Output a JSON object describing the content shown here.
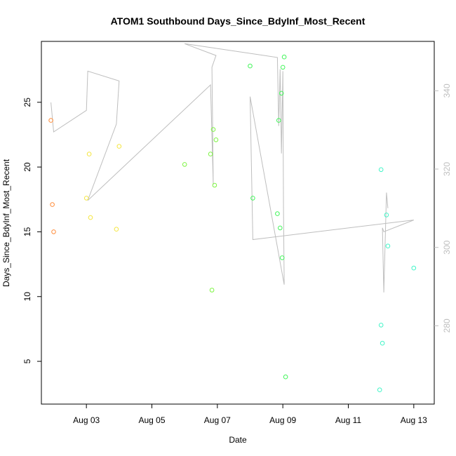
{
  "chart_data": {
    "type": "scatter",
    "title": "ATOM1 Southbound Days_Since_BdyInf_Most_Recent",
    "xlabel": "Date",
    "ylabel": "Days_Since_BdyInf_Most_Recent",
    "x_range": [
      "2022-08-01T15:00",
      "2022-08-13T15:00"
    ],
    "ylim": [
      1.7,
      29.7
    ],
    "y2lim": [
      260.0,
      352.6
    ],
    "x_ticks": [
      {
        "date": "2022-08-03",
        "label": "Aug 03"
      },
      {
        "date": "2022-08-05",
        "label": "Aug 05"
      },
      {
        "date": "2022-08-07",
        "label": "Aug 07"
      },
      {
        "date": "2022-08-09",
        "label": "Aug 09"
      },
      {
        "date": "2022-08-11",
        "label": "Aug 11"
      },
      {
        "date": "2022-08-13",
        "label": "Aug 13"
      }
    ],
    "y_ticks": [
      5,
      10,
      15,
      20,
      25
    ],
    "y2_ticks": [
      280,
      300,
      320,
      340
    ],
    "points": [
      {
        "x": "2022-08-01T22:00",
        "y": 23.6,
        "color": "#ff8c3a"
      },
      {
        "x": "2022-08-01T23:00",
        "y": 17.1,
        "color": "#ff8c3a"
      },
      {
        "x": "2022-08-02T00:00",
        "y": 15.0,
        "color": "#ff8c3a"
      },
      {
        "x": "2022-08-03T00:00",
        "y": 17.6,
        "color": "#f5e642"
      },
      {
        "x": "2022-08-03T02:00",
        "y": 21.0,
        "color": "#f5e642"
      },
      {
        "x": "2022-08-03T03:00",
        "y": 16.1,
        "color": "#f5e642"
      },
      {
        "x": "2022-08-03T22:00",
        "y": 15.2,
        "color": "#f5e642"
      },
      {
        "x": "2022-08-04T00:00",
        "y": 21.6,
        "color": "#f5e642"
      },
      {
        "x": "2022-08-06T00:00",
        "y": 20.2,
        "color": "#7df542"
      },
      {
        "x": "2022-08-06T19:00",
        "y": 21.0,
        "color": "#7df542"
      },
      {
        "x": "2022-08-06T20:00",
        "y": 10.5,
        "color": "#7df542"
      },
      {
        "x": "2022-08-06T21:00",
        "y": 22.9,
        "color": "#7df542"
      },
      {
        "x": "2022-08-06T22:00",
        "y": 18.6,
        "color": "#7df542"
      },
      {
        "x": "2022-08-06T23:00",
        "y": 22.1,
        "color": "#7df542"
      },
      {
        "x": "2022-08-08T00:00",
        "y": 27.8,
        "color": "#42f55a"
      },
      {
        "x": "2022-08-08T02:00",
        "y": 17.6,
        "color": "#42f55a"
      },
      {
        "x": "2022-08-08T20:00",
        "y": 16.4,
        "color": "#42f55a"
      },
      {
        "x": "2022-08-08T21:00",
        "y": 23.6,
        "color": "#42f55a"
      },
      {
        "x": "2022-08-08T22:00",
        "y": 15.3,
        "color": "#42f55a"
      },
      {
        "x": "2022-08-08T23:00",
        "y": 25.7,
        "color": "#42f55a"
      },
      {
        "x": "2022-08-09T00:00",
        "y": 27.7,
        "color": "#42f55a"
      },
      {
        "x": "2022-08-08T23:30",
        "y": 13.0,
        "color": "#42f55a"
      },
      {
        "x": "2022-08-09T01:00",
        "y": 28.5,
        "color": "#42f55a"
      },
      {
        "x": "2022-08-09T02:00",
        "y": 3.8,
        "color": "#42f55a"
      },
      {
        "x": "2022-08-12T00:00",
        "y": 19.8,
        "color": "#42f5c8"
      },
      {
        "x": "2022-08-12T04:00",
        "y": 16.3,
        "color": "#42f5c8"
      },
      {
        "x": "2022-08-12T05:00",
        "y": 13.9,
        "color": "#42f5c8"
      },
      {
        "x": "2022-08-12T00:00",
        "y": 7.8,
        "color": "#42f5c8"
      },
      {
        "x": "2022-08-12T01:00",
        "y": 6.4,
        "color": "#42f5c8"
      },
      {
        "x": "2022-08-11T23:00",
        "y": 2.8,
        "color": "#42f5c8"
      },
      {
        "x": "2022-08-13T00:00",
        "y": 12.2,
        "color": "#42f5c8"
      }
    ],
    "line_color": "#bebebe",
    "line_y2": [
      {
        "x": "2022-08-01T22:00",
        "y": 337.0
      },
      {
        "x": "2022-08-02T00:00",
        "y": 329.5
      },
      {
        "x": "2022-08-03T00:00",
        "y": 335.0
      },
      {
        "x": "2022-08-03T01:00",
        "y": 345.0
      },
      {
        "x": "2022-08-04T00:00",
        "y": 342.5
      },
      {
        "x": "2022-08-03T22:00",
        "y": 331.5
      },
      {
        "x": "2022-08-03T01:00",
        "y": 312.0
      },
      {
        "x": "2022-08-06T19:00",
        "y": 341.5
      },
      {
        "x": "2022-08-06T21:00",
        "y": 316.0
      },
      {
        "x": "2022-08-06T20:00",
        "y": 346.0
      },
      {
        "x": "2022-08-06T23:00",
        "y": 349.0
      },
      {
        "x": "2022-08-06T00:00",
        "y": 352.0
      },
      {
        "x": "2022-08-08T20:00",
        "y": 348.5
      },
      {
        "x": "2022-08-08T21:00",
        "y": 331.0
      },
      {
        "x": "2022-08-08T22:00",
        "y": 345.5
      },
      {
        "x": "2022-08-08T23:00",
        "y": 324.0
      },
      {
        "x": "2022-08-09T00:00",
        "y": 345.0
      },
      {
        "x": "2022-08-09T00:30",
        "y": 310.0
      },
      {
        "x": "2022-08-09T01:00",
        "y": 290.5
      },
      {
        "x": "2022-08-08T00:00",
        "y": 338.5
      },
      {
        "x": "2022-08-08T02:00",
        "y": 302.0
      },
      {
        "x": "2022-08-13T00:00",
        "y": 307.0
      },
      {
        "x": "2022-08-12T02:00",
        "y": 304.0
      },
      {
        "x": "2022-08-12T01:00",
        "y": 305.0
      },
      {
        "x": "2022-08-12T02:00",
        "y": 288.5
      },
      {
        "x": "2022-08-12T04:00",
        "y": 314.0
      },
      {
        "x": "2022-08-12T05:00",
        "y": 310.0
      }
    ]
  }
}
